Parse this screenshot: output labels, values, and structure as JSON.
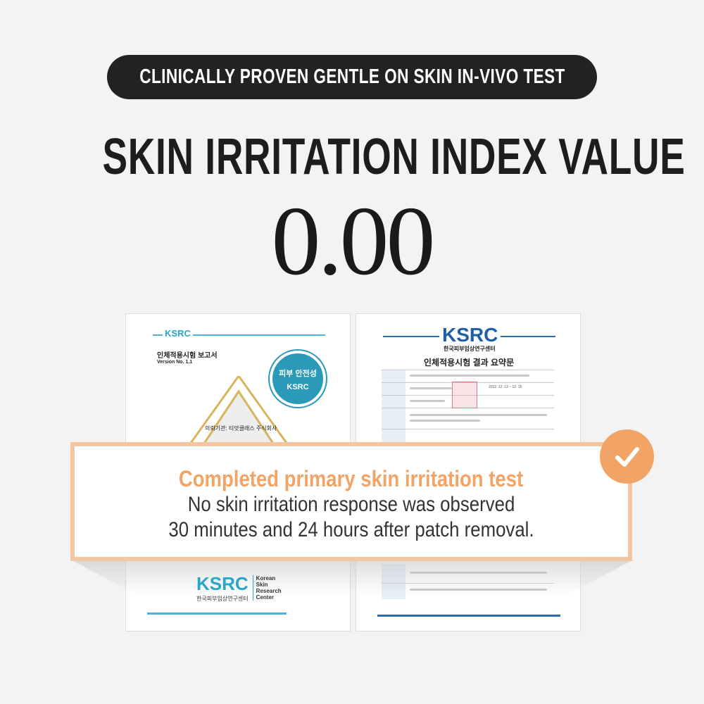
{
  "banner": {
    "label": "CLINICALLY PROVEN GENTLE ON SKIN IN-VIVO TEST"
  },
  "heading": "SKIN IRRITATION INDEX VALUE",
  "index_value": "0.00",
  "left_document": {
    "logo": "KSRC",
    "title": "인체적용시험 보고서",
    "version": "Version No. 1.1",
    "seal_text": "피부 안전성",
    "seal_brand": "KSRC",
    "client": "의뢰기관: 티앗클래스 주식회사",
    "footer_logo": "KSRC",
    "footer_org_kr": "한국피부임상연구센터",
    "footer_org_en": [
      "Korean",
      "Skin",
      "Research",
      "Center"
    ]
  },
  "right_document": {
    "logo": "KSRC",
    "org_kr": "한국피부임상연구센터",
    "title": "인체적용시험 결과 요약문",
    "period": "2022. 12. 13 ~ 12. 15"
  },
  "callout": {
    "headline": "Completed primary skin irritation test",
    "line1": "No skin irritation response was observed",
    "line2": "30 minutes and 24 hours after patch removal."
  },
  "colors": {
    "accent": "#f2a466",
    "border": "#f2c6a2",
    "banner": "#222222",
    "ksrc": "#2aa6c8"
  },
  "icons": {
    "badge": "check-icon"
  }
}
